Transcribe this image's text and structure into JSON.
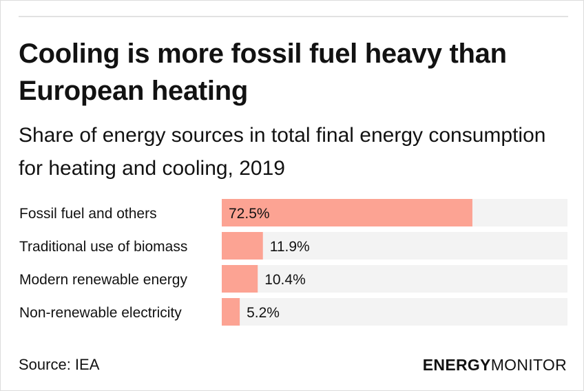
{
  "title": "Cooling is more fossil fuel heavy than European heating",
  "subtitle": "Share of energy sources in total final energy consumption for heating and cooling, 2019",
  "source": "Source: IEA",
  "brand": {
    "part1": "ENERGY",
    "part2": "MONITOR"
  },
  "colors": {
    "bar": "#fca393",
    "track": "#f3f3f3",
    "text": "#121212"
  },
  "chart_data": {
    "type": "bar",
    "orientation": "horizontal",
    "categories": [
      "Fossil fuel and others",
      "Traditional use of biomass",
      "Modern renewable energy",
      "Non-renewable electricity"
    ],
    "values": [
      72.5,
      11.9,
      10.4,
      5.2
    ],
    "value_labels": [
      "72.5%",
      "11.9%",
      "10.4%",
      "5.2%"
    ],
    "xlim": [
      0,
      100
    ],
    "grid": false
  }
}
